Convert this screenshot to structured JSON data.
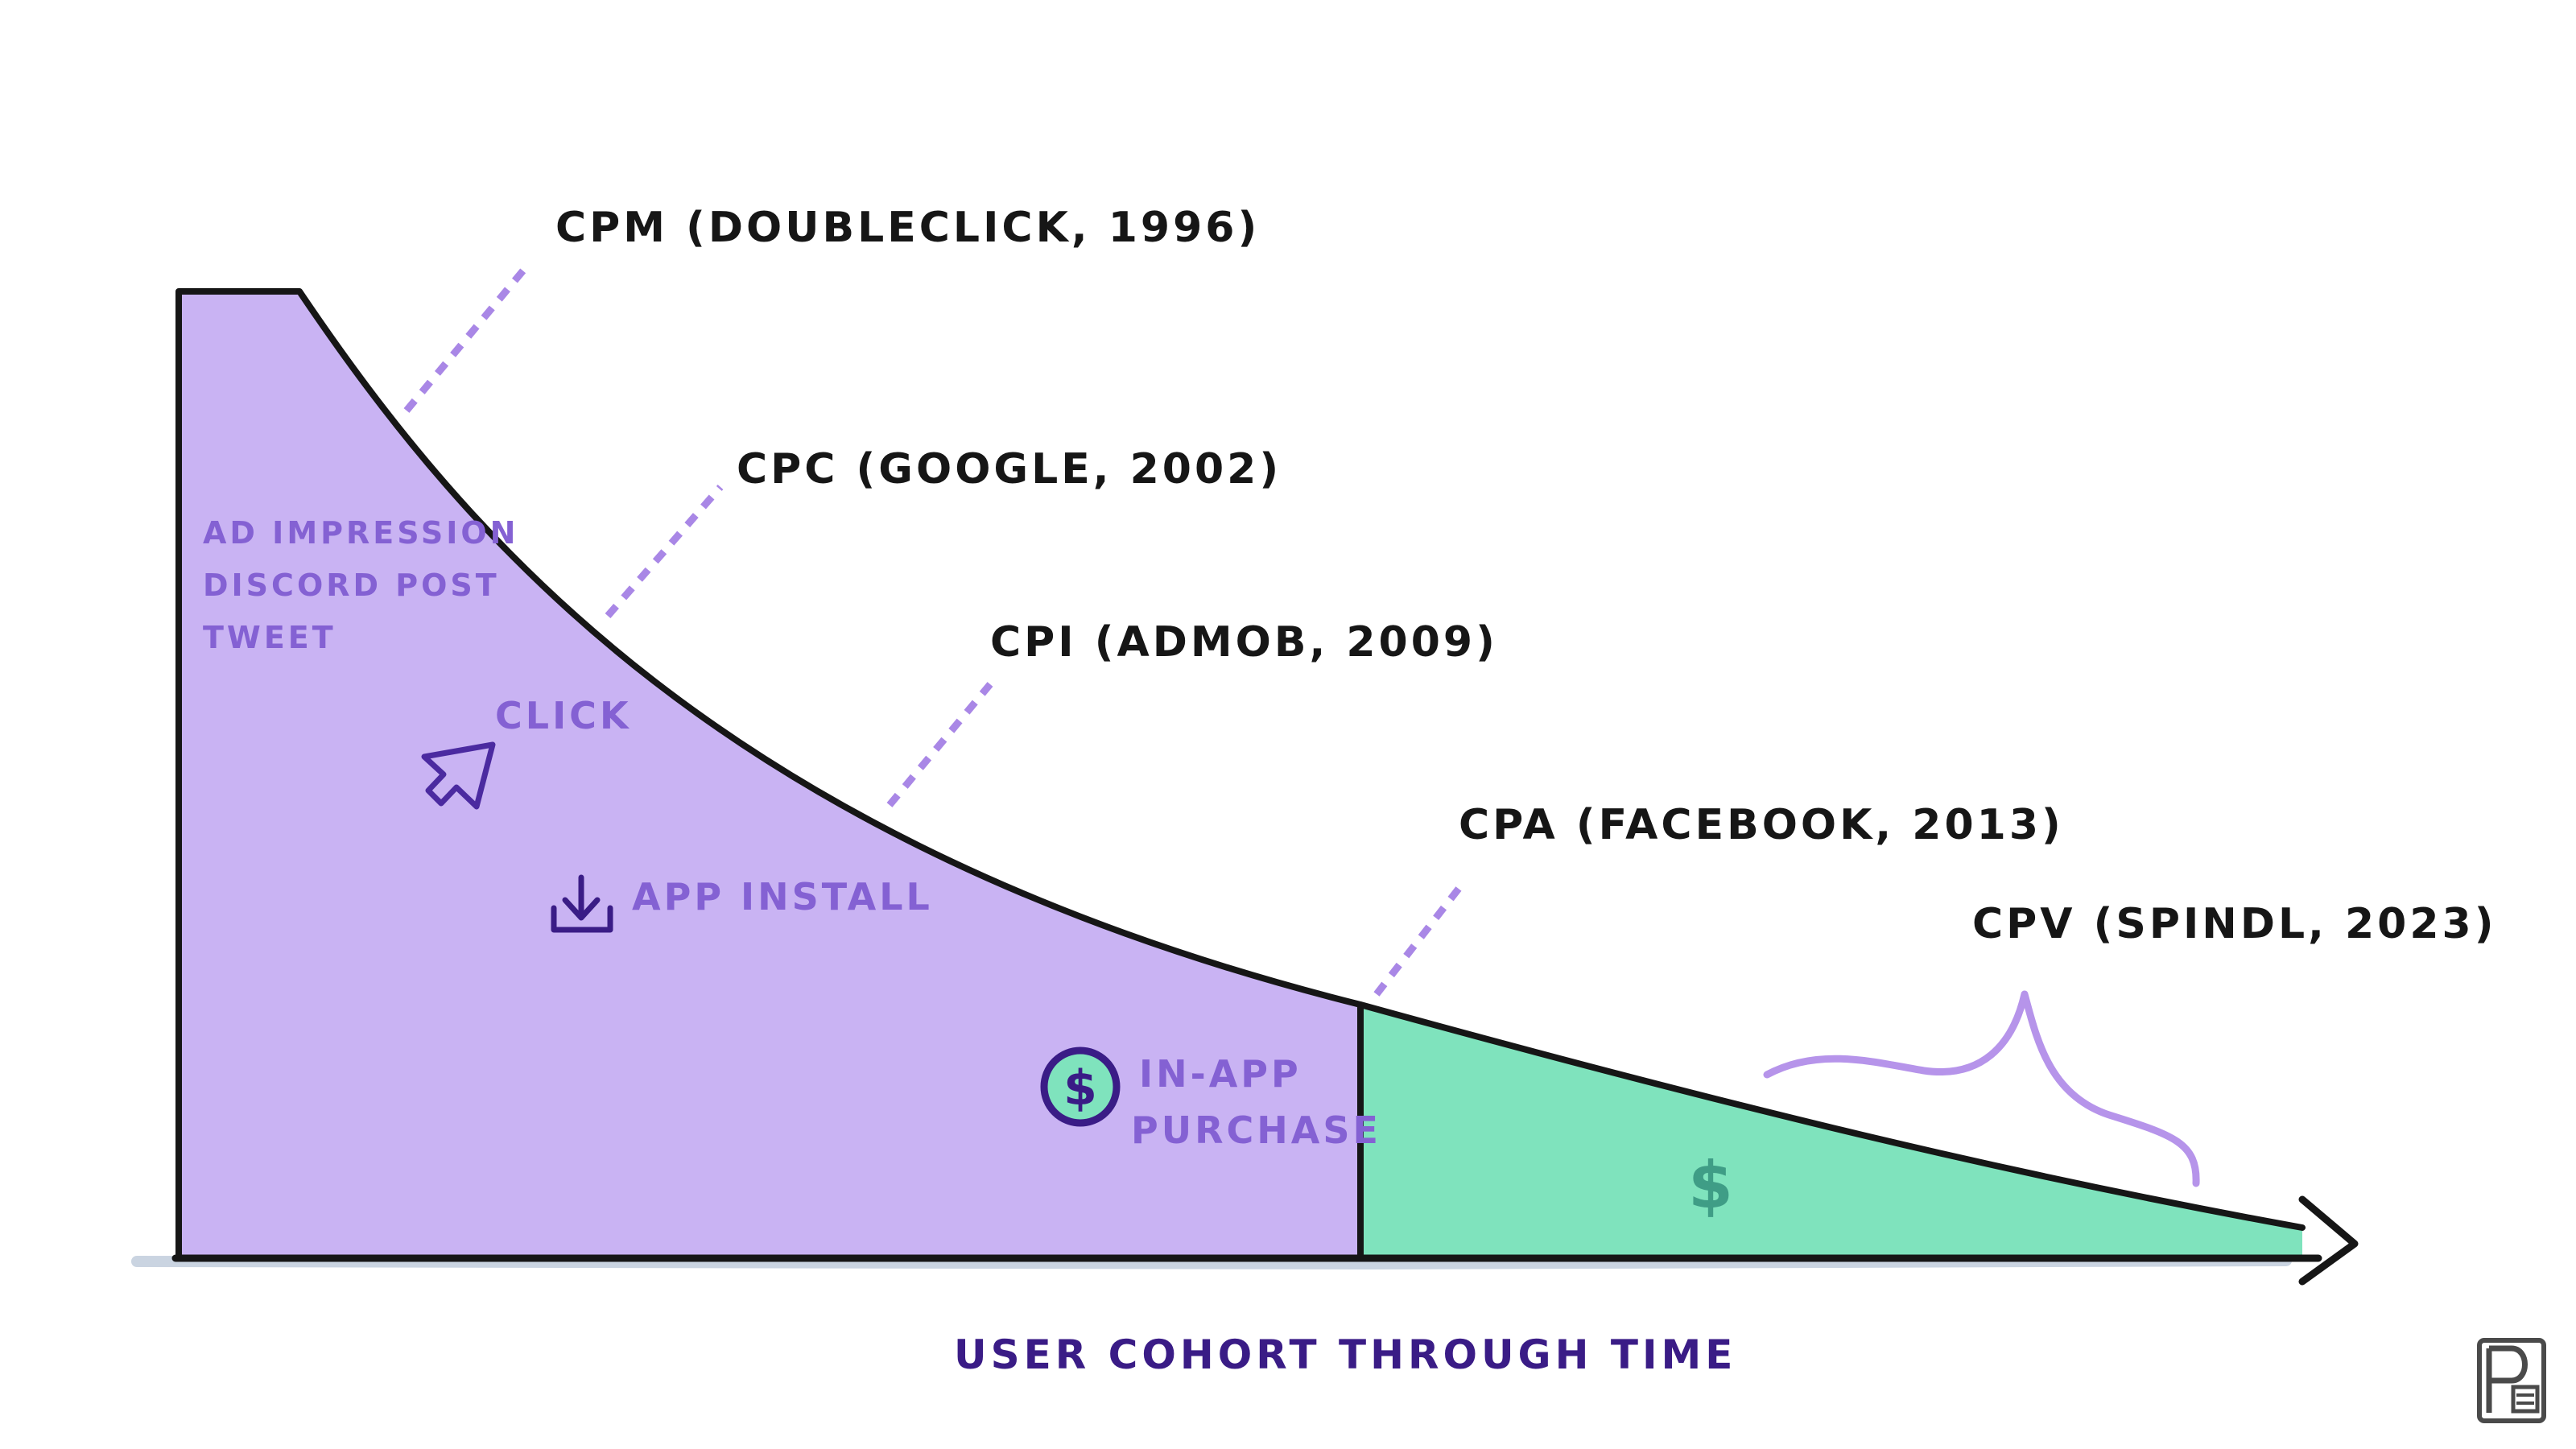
{
  "callouts": {
    "cpm": "CPM (DOUBLECLICK, 1996)",
    "cpc": "CPC (GOOGLE, 2002)",
    "cpi": "CPI (ADMOB, 2009)",
    "cpa": "CPA (FACEBOOK, 2013)",
    "cpv": "CPV (SPINDL, 2023)"
  },
  "stages": {
    "impression_line1": "AD IMPRESSION",
    "impression_line2": "DISCORD POST",
    "impression_line3": "TWEET",
    "click": "CLICK",
    "install": "APP INSTALL",
    "purchase_line1": "IN-APP",
    "purchase_line2": "PURCHASE",
    "value_symbol": "$",
    "purchase_symbol": "$"
  },
  "axis": {
    "x_label": "USER COHORT THROUGH TIME"
  },
  "icons": [
    "cursor-arrow-icon",
    "download-icon",
    "dollar-coin-icon",
    "dollar-icon",
    "publisher-logo-icon"
  ],
  "colors": {
    "purple_fill": "#c9b3f3",
    "green_fill": "#7fe3bd",
    "outline": "#161616",
    "callout_dash": "#a987e6",
    "inside_text": "#8461d3",
    "axis_text": "#3a1c86",
    "green_text": "#3f9d86",
    "brace": "#b694ea"
  }
}
